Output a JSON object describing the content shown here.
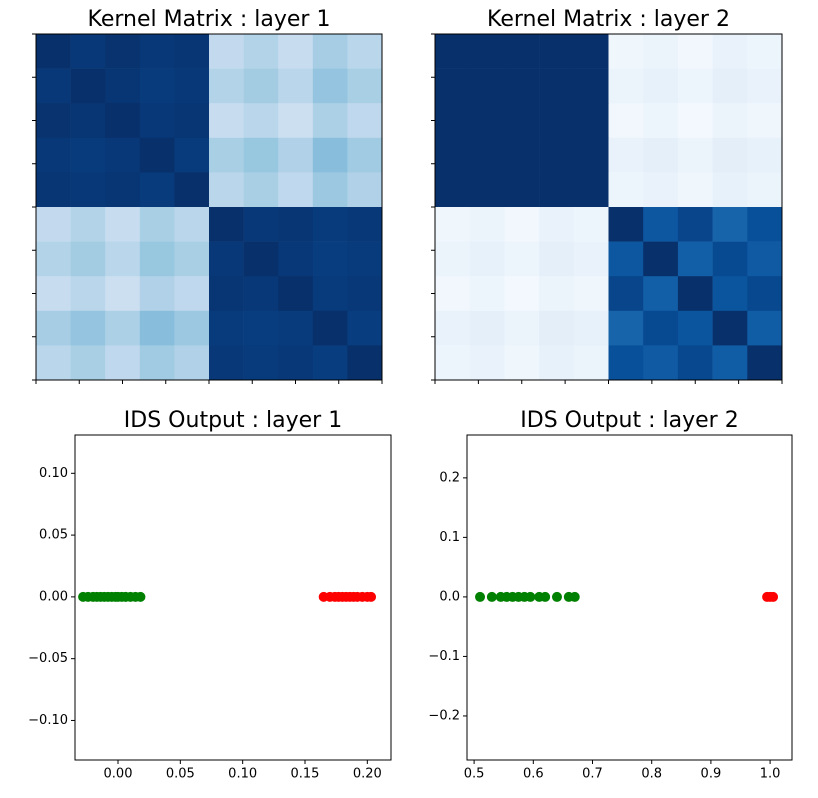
{
  "chart_data": [
    {
      "type": "heatmap",
      "title": "Kernel Matrix : layer 1",
      "colormap": [
        "#f7fbff",
        "#deebf7",
        "#c6dbef",
        "#9ecae1",
        "#6baed6",
        "#4292c6",
        "#2171b5",
        "#08519c",
        "#08306b"
      ],
      "vmin": 0,
      "vmax": 1,
      "xlim": [
        0,
        80
      ],
      "ylim": [
        80,
        0
      ],
      "xticks": [
        0,
        10,
        20,
        30,
        40,
        50,
        60,
        70,
        80
      ],
      "yticks": [
        0,
        10,
        20,
        30,
        40,
        50,
        60,
        70,
        80
      ],
      "tick_labels": false,
      "matrix": [
        [
          1,
          0.97,
          0.99,
          0.97,
          0.98,
          0.26,
          0.31,
          0.24,
          0.35,
          0.29
        ],
        [
          0.97,
          1,
          0.98,
          0.96,
          0.97,
          0.31,
          0.36,
          0.29,
          0.4,
          0.34
        ],
        [
          0.99,
          0.98,
          1,
          0.97,
          0.98,
          0.24,
          0.29,
          0.22,
          0.33,
          0.27
        ],
        [
          0.97,
          0.96,
          0.97,
          1,
          0.96,
          0.34,
          0.39,
          0.32,
          0.43,
          0.37
        ],
        [
          0.98,
          0.97,
          0.98,
          0.96,
          1,
          0.29,
          0.34,
          0.27,
          0.38,
          0.32
        ],
        [
          0.26,
          0.31,
          0.24,
          0.34,
          0.29,
          1,
          0.97,
          0.98,
          0.96,
          0.97
        ],
        [
          0.31,
          0.36,
          0.29,
          0.39,
          0.34,
          0.97,
          1,
          0.97,
          0.95,
          0.96
        ],
        [
          0.24,
          0.29,
          0.22,
          0.32,
          0.27,
          0.98,
          0.97,
          1,
          0.96,
          0.97
        ],
        [
          0.35,
          0.4,
          0.33,
          0.43,
          0.38,
          0.96,
          0.95,
          0.96,
          1,
          0.95
        ],
        [
          0.29,
          0.34,
          0.27,
          0.37,
          0.32,
          0.97,
          0.96,
          0.97,
          0.95,
          1
        ]
      ]
    },
    {
      "type": "heatmap",
      "title": "Kernel Matrix : layer 2",
      "colormap": [
        "#f7fbff",
        "#deebf7",
        "#c6dbef",
        "#9ecae1",
        "#6baed6",
        "#4292c6",
        "#2171b5",
        "#08519c",
        "#08306b"
      ],
      "vmin": 0,
      "vmax": 1,
      "xlim": [
        0,
        80
      ],
      "ylim": [
        80,
        0
      ],
      "xticks": [
        0,
        10,
        20,
        30,
        40,
        50,
        60,
        70,
        80
      ],
      "yticks": [
        0,
        10,
        20,
        30,
        40,
        50,
        60,
        70,
        80
      ],
      "tick_labels": false,
      "matrix": [
        [
          1,
          1,
          1,
          1,
          1,
          0.04,
          0.06,
          0.03,
          0.07,
          0.05
        ],
        [
          1,
          1,
          1,
          1,
          1,
          0.06,
          0.08,
          0.05,
          0.09,
          0.07
        ],
        [
          1,
          1,
          1,
          1,
          1,
          0.03,
          0.05,
          0.02,
          0.06,
          0.04
        ],
        [
          1,
          1,
          1,
          1,
          1,
          0.07,
          0.09,
          0.06,
          0.1,
          0.08
        ],
        [
          1,
          1,
          1,
          1,
          1,
          0.05,
          0.07,
          0.04,
          0.08,
          0.06
        ],
        [
          0.04,
          0.06,
          0.03,
          0.07,
          0.05,
          1,
          0.85,
          0.92,
          0.8,
          0.88
        ],
        [
          0.06,
          0.08,
          0.05,
          0.09,
          0.07,
          0.85,
          1,
          0.82,
          0.9,
          0.84
        ],
        [
          0.03,
          0.05,
          0.02,
          0.06,
          0.04,
          0.92,
          0.82,
          1,
          0.86,
          0.91
        ],
        [
          0.07,
          0.09,
          0.06,
          0.1,
          0.08,
          0.8,
          0.9,
          0.86,
          1,
          0.83
        ],
        [
          0.05,
          0.07,
          0.04,
          0.08,
          0.06,
          0.88,
          0.84,
          0.91,
          0.83,
          1
        ]
      ]
    },
    {
      "type": "scatter",
      "title": "IDS Output : layer 1",
      "xlim": [
        -0.0345,
        0.219
      ],
      "ylim": [
        -0.132,
        0.131
      ],
      "xticks": [
        {
          "value": 0,
          "label": "0.00"
        },
        {
          "value": 0.05,
          "label": "0.05"
        },
        {
          "value": 0.1,
          "label": "0.10"
        },
        {
          "value": 0.15,
          "label": "0.15"
        },
        {
          "value": 0.2,
          "label": "0.20"
        }
      ],
      "yticks": [
        {
          "value": -0.1,
          "label": "−0.10"
        },
        {
          "value": -0.05,
          "label": "−0.05"
        },
        {
          "value": 0,
          "label": "0.00"
        },
        {
          "value": 0.05,
          "label": "0.05"
        },
        {
          "value": 0.1,
          "label": "0.10"
        }
      ],
      "series": [
        {
          "color": "#008000",
          "x": [
            -0.028,
            -0.024,
            -0.02,
            -0.017,
            -0.014,
            -0.011,
            -0.008,
            -0.005,
            -0.002,
            0,
            0.003,
            0.006,
            0.01,
            0.014,
            0.018
          ],
          "y": [
            0,
            0,
            0,
            0,
            0,
            0,
            0,
            0,
            0,
            0,
            0,
            0,
            0,
            0,
            0
          ]
        },
        {
          "color": "#ff0000",
          "x": [
            0.165,
            0.17,
            0.174,
            0.177,
            0.18,
            0.183,
            0.186,
            0.189,
            0.192,
            0.196,
            0.2,
            0.203
          ],
          "y": [
            0,
            0,
            0,
            0,
            0,
            0,
            0,
            0,
            0,
            0,
            0,
            0
          ]
        }
      ]
    },
    {
      "type": "scatter",
      "title": "IDS Output : layer 2",
      "xlim": [
        0.488,
        1.037
      ],
      "ylim": [
        -0.274,
        0.272
      ],
      "xticks": [
        {
          "value": 0.5,
          "label": "0.5"
        },
        {
          "value": 0.6,
          "label": "0.6"
        },
        {
          "value": 0.7,
          "label": "0.7"
        },
        {
          "value": 0.8,
          "label": "0.8"
        },
        {
          "value": 0.9,
          "label": "0.9"
        },
        {
          "value": 1,
          "label": "1.0"
        }
      ],
      "yticks": [
        {
          "value": -0.2,
          "label": "−0.2"
        },
        {
          "value": -0.1,
          "label": "−0.1"
        },
        {
          "value": 0,
          "label": "0.0"
        },
        {
          "value": 0.1,
          "label": "0.1"
        },
        {
          "value": 0.2,
          "label": "0.2"
        }
      ],
      "series": [
        {
          "color": "#008000",
          "x": [
            0.51,
            0.53,
            0.545,
            0.555,
            0.565,
            0.575,
            0.585,
            0.595,
            0.61,
            0.62,
            0.64,
            0.66,
            0.67
          ],
          "y": [
            0,
            0,
            0,
            0,
            0,
            0,
            0,
            0,
            0,
            0,
            0,
            0,
            0
          ]
        },
        {
          "color": "#ff0000",
          "x": [
            0.995,
            1,
            1.005
          ],
          "y": [
            0,
            0,
            0
          ]
        }
      ]
    }
  ]
}
